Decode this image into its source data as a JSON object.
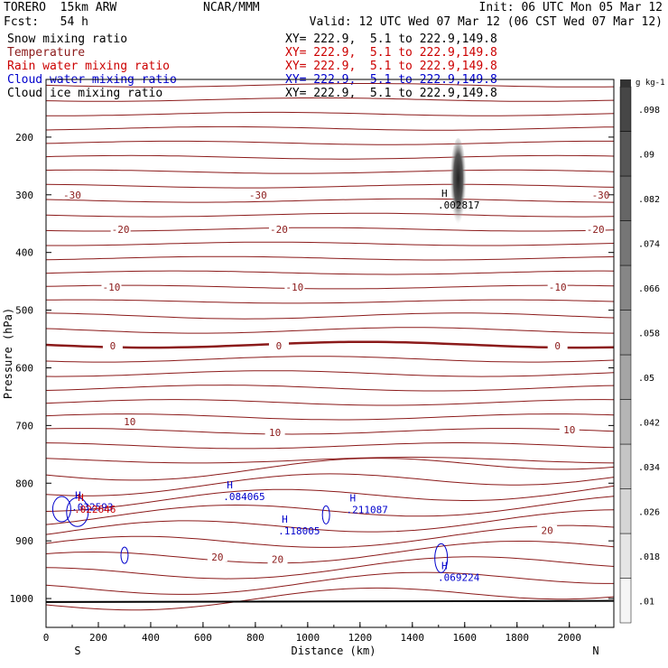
{
  "header": {
    "model": "TORERO  15km ARW",
    "org": "NCAR/MMM",
    "init": "Init: 06 UTC Mon 05 Mar 12",
    "fcst": "Fcst:   54 h",
    "valid": "Valid: 12 UTC Wed 07 Mar 12 (06 CST Wed 07 Mar 12)"
  },
  "fields": [
    {
      "name": "Snow mixing ratio",
      "xy": "XY= 222.9,  5.1 to 222.9,149.8",
      "color": "#000000",
      "xy_color": "#000000"
    },
    {
      "name": "Temperature",
      "xy": "XY= 222.9,  5.1 to 222.9,149.8",
      "color": "#8b1a1a",
      "xy_color": "#cc0000"
    },
    {
      "name": "Rain water mixing ratio",
      "xy": "XY= 222.9,  5.1 to 222.9,149.8",
      "color": "#cc0000",
      "xy_color": "#cc0000"
    },
    {
      "name": "Cloud water mixing ratio",
      "xy": "XY= 222.9,  5.1 to 222.9,149.8",
      "color": "#0000cc",
      "xy_color": "#0000cc"
    },
    {
      "name": "Cloud ice mixing ratio",
      "xy": "XY= 222.9,  5.1 to 222.9,149.8",
      "color": "#000000",
      "xy_color": "#000000"
    }
  ],
  "chart_data": {
    "type": "contour",
    "xlabel": "Distance (km)",
    "ylabel": "Pressure (hPa)",
    "xlim": [
      0,
      2170
    ],
    "ylim": [
      1050,
      100
    ],
    "xticks": [
      0,
      200,
      400,
      600,
      800,
      1000,
      1200,
      1400,
      1600,
      1800,
      2000
    ],
    "yticks": [
      200,
      300,
      400,
      500,
      600,
      700,
      800,
      900,
      1000
    ],
    "left_label": "S",
    "right_label": "N",
    "colorbar": {
      "unit": "g kg-1",
      "ticks": [
        ".01",
        ".018",
        ".026",
        ".034",
        ".042",
        ".05",
        ".058",
        ".066",
        ".074",
        ".082",
        ".09",
        ".098"
      ]
    },
    "temperature_labels": [
      {
        "text": "-30",
        "x": 100,
        "p": 300
      },
      {
        "text": "-30",
        "x": 810,
        "p": 300
      },
      {
        "text": "-30",
        "x": 2120,
        "p": 300
      },
      {
        "text": "-20",
        "x": 285,
        "p": 360
      },
      {
        "text": "-20",
        "x": 890,
        "p": 360
      },
      {
        "text": "-20",
        "x": 2100,
        "p": 360
      },
      {
        "text": "-10",
        "x": 250,
        "p": 460
      },
      {
        "text": "-10",
        "x": 950,
        "p": 460
      },
      {
        "text": "-10",
        "x": 1955,
        "p": 460
      },
      {
        "text": "0",
        "x": 255,
        "p": 562
      },
      {
        "text": "0",
        "x": 890,
        "p": 562
      },
      {
        "text": "0",
        "x": 1955,
        "p": 562
      },
      {
        "text": "10",
        "x": 320,
        "p": 693
      },
      {
        "text": "10",
        "x": 875,
        "p": 712
      },
      {
        "text": "10",
        "x": 2000,
        "p": 707
      },
      {
        "text": "20",
        "x": 655,
        "p": 928
      },
      {
        "text": "20",
        "x": 885,
        "p": 932
      },
      {
        "text": "20",
        "x": 1915,
        "p": 882
      }
    ],
    "maxima_labels": [
      {
        "mark": "H",
        "value": ".002817",
        "x": 1580,
        "p": 310,
        "color": "#000000"
      },
      {
        "mark": "H",
        "value": ".084065",
        "x": 760,
        "p": 815,
        "color": "#0000cc"
      },
      {
        "mark": "H",
        "value": ".211087",
        "x": 1230,
        "p": 838,
        "color": "#0000cc"
      },
      {
        "mark": "H",
        "value": ".118005",
        "x": 970,
        "p": 875,
        "color": "#0000cc"
      },
      {
        "mark": "H",
        "value": ".069224",
        "x": 1580,
        "p": 955,
        "color": "#0000cc"
      },
      {
        "mark": "H",
        "value": ".032593",
        "x": 180,
        "p": 833,
        "color": "#0000cc"
      },
      {
        "mark": "H",
        "value": ".022646",
        "x": 190,
        "p": 837,
        "color": "#cc0000"
      }
    ]
  }
}
